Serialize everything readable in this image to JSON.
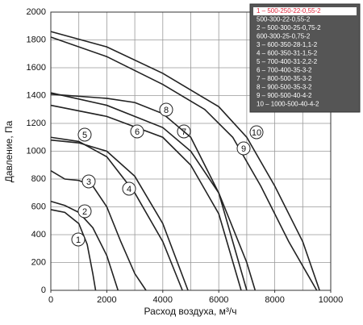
{
  "chart_data": {
    "type": "line",
    "y_label": "Давление, Па",
    "x_label": "Расход воздуха, м³/ч",
    "xlim": [
      0,
      10000
    ],
    "xticks": [
      0,
      2000,
      4000,
      6000,
      8000,
      10000
    ],
    "x_grid_step": 1000,
    "ylim": [
      0,
      2000
    ],
    "yticks": [
      0,
      200,
      400,
      600,
      800,
      1000,
      1200,
      1400,
      1600,
      1800,
      2000
    ],
    "grid": true,
    "legend_position": "upper right",
    "legend_items": [
      "1 – 500-250-22-0,55-2",
      "500-300-22-0,55-2",
      "2 – 500-300-25-0,75-2",
      "600-300-25-0,75-2",
      "3 – 600-350-28-1,1-2",
      "4 – 600-350-31-1,5-2",
      "5 – 700-400-31-2,2-2",
      "6 – 700-400-35-3-2",
      "7 – 800-500-35-3-2",
      "8 – 900-500-35-3-2",
      "9 – 900-500-40-4-2",
      "10 – 1000-500-40-4-2"
    ],
    "series": [
      {
        "name": "1",
        "color": "#222222",
        "x": [
          0,
          500,
          1000,
          1300,
          1500,
          1600
        ],
        "values": [
          580,
          560,
          480,
          330,
          120,
          0
        ]
      },
      {
        "name": "2",
        "color": "#222222",
        "x": [
          0,
          500,
          1000,
          1500,
          2000,
          2400
        ],
        "values": [
          640,
          610,
          560,
          450,
          250,
          0
        ]
      },
      {
        "name": "3",
        "color": "#222222",
        "x": [
          0,
          500,
          1000,
          1500,
          2000,
          2500,
          3000,
          3400
        ],
        "values": [
          860,
          800,
          790,
          750,
          600,
          350,
          120,
          0
        ]
      },
      {
        "name": "4",
        "color": "#222222",
        "x": [
          0,
          1000,
          2000,
          3000,
          4000,
          4700
        ],
        "values": [
          1100,
          1070,
          960,
          700,
          350,
          0
        ]
      },
      {
        "name": "5",
        "color": "#222222",
        "x": [
          0,
          1000,
          2000,
          3000,
          4000,
          4900
        ],
        "values": [
          1080,
          1060,
          1000,
          820,
          480,
          0
        ]
      },
      {
        "name": "6",
        "color": "#222222",
        "x": [
          0,
          2000,
          4000,
          5000,
          6000,
          6800
        ],
        "values": [
          1330,
          1250,
          1100,
          900,
          550,
          0
        ]
      },
      {
        "name": "7",
        "color": "#222222",
        "x": [
          0,
          2000,
          4000,
          5000,
          6000,
          7000,
          7300
        ],
        "values": [
          1420,
          1330,
          1170,
          1000,
          700,
          200,
          0
        ]
      },
      {
        "name": "8",
        "color": "#222222",
        "x": [
          0,
          2000,
          3000,
          4000,
          5000,
          6000,
          7000
        ],
        "values": [
          1410,
          1380,
          1350,
          1270,
          1100,
          700,
          0
        ]
      },
      {
        "name": "9",
        "color": "#222222",
        "x": [
          0,
          2000,
          4000,
          5500,
          6500,
          7500,
          8500,
          9500
        ],
        "values": [
          1820,
          1680,
          1480,
          1300,
          1100,
          750,
          350,
          0
        ]
      },
      {
        "name": "10",
        "color": "#222222",
        "x": [
          0,
          2000,
          4000,
          6000,
          7000,
          8000,
          9000,
          9600
        ],
        "values": [
          1860,
          1750,
          1560,
          1320,
          1100,
          750,
          350,
          0
        ]
      }
    ]
  }
}
